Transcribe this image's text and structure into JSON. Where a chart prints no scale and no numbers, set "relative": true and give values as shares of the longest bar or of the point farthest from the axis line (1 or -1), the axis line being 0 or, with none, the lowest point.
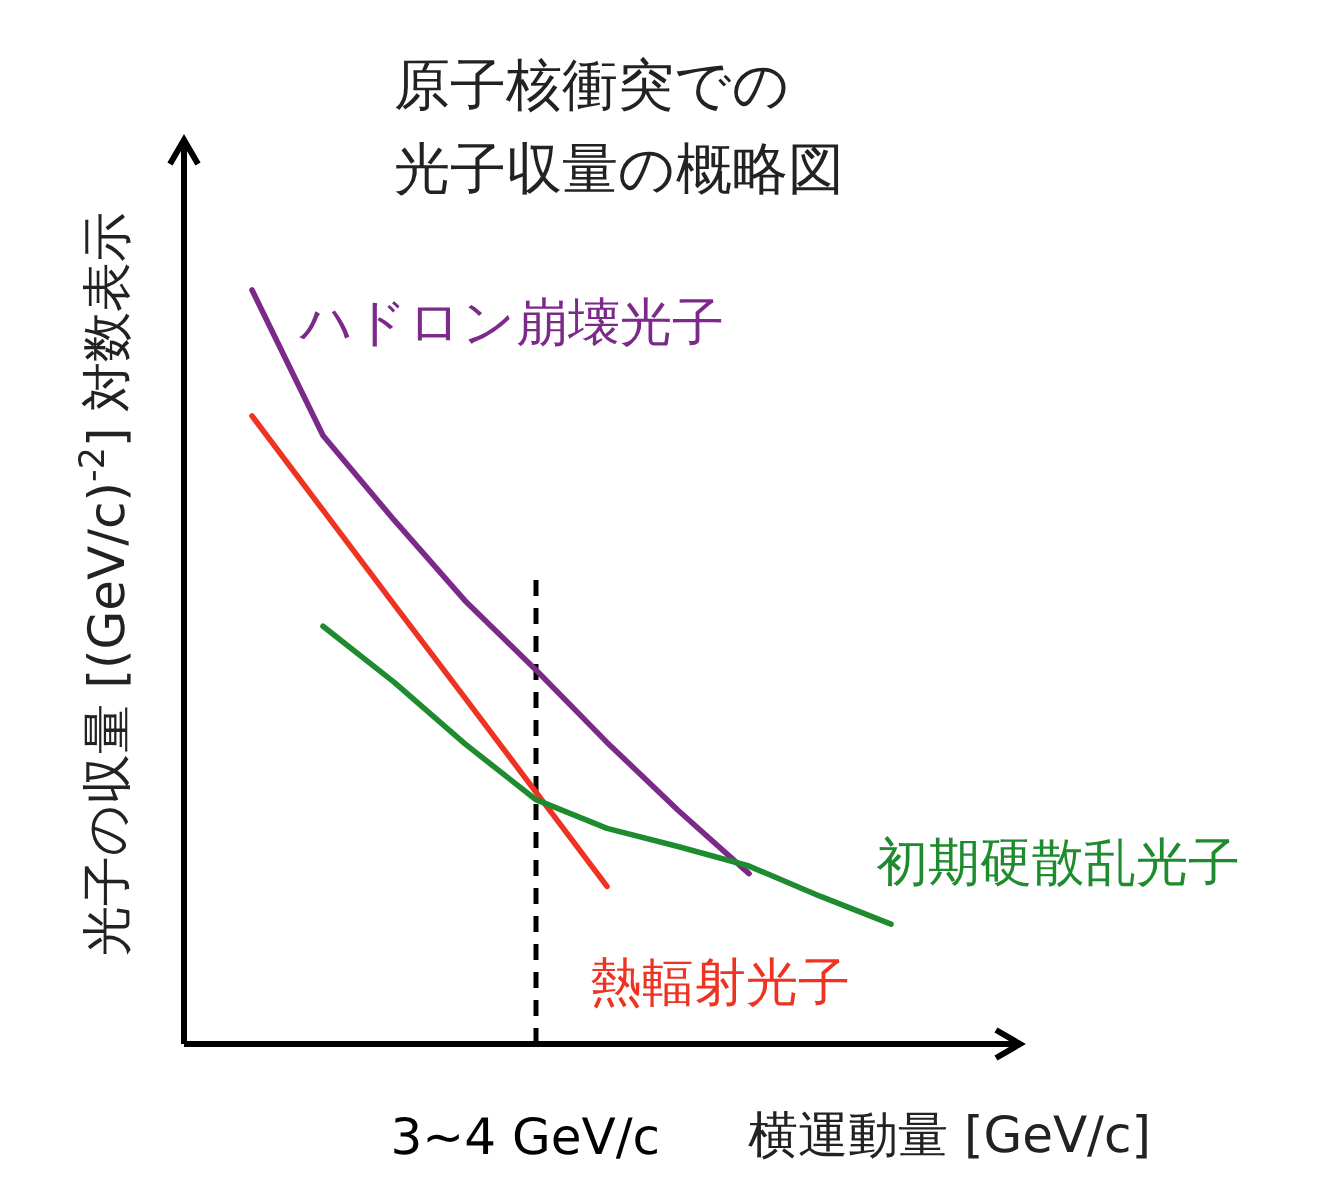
{
  "chart_data": {
    "type": "line",
    "relative": true,
    "title": "原子核衝突での光子収量の概略図",
    "xlabel": "横運動量 [GeV/c]",
    "ylabel": "光子の収量 [(GeV/c)$^{-2}$] 対数表示",
    "categories": [
      null,
      null,
      null,
      null,
      null,
      null,
      null,
      null,
      null,
      null
    ],
    "legend": false,
    "tick_labels": false,
    "marker": "none",
    "line_style": "solid",
    "series": [
      {
        "name": "ハドロン崩壊光子",
        "color": "#7b2a8a",
        "values": [
          1.0,
          0.807,
          0.695,
          0.588,
          0.496,
          0.4,
          0.31,
          0.226,
          null,
          null
        ]
      },
      {
        "name": "熱輻射光子",
        "color": "#ee3322",
        "values": [
          0.833,
          0.708,
          0.583,
          0.459,
          0.334,
          0.209,
          null,
          null,
          null,
          null
        ]
      },
      {
        "name": "初期硬散乱光子",
        "color": "#1e8c2e",
        "values": [
          null,
          0.554,
          0.48,
          0.398,
          0.324,
          0.286,
          0.262,
          0.236,
          0.196,
          0.159
        ]
      }
    ],
    "annotations": [
      "3~4 GeV/c"
    ]
  }
}
